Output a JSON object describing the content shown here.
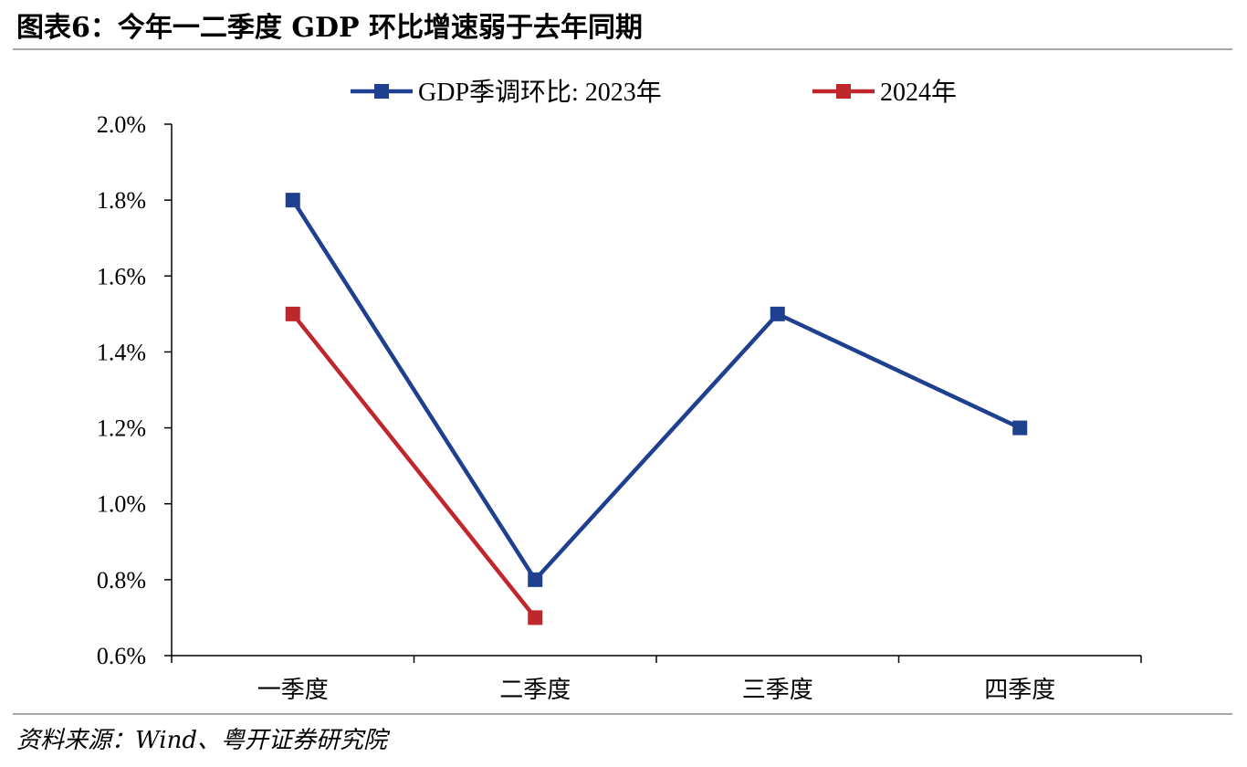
{
  "figure": {
    "title": "图表6：今年一二季度 GDP 环比增速弱于去年同期",
    "source": "资料来源：Wind、粤开证券研究院"
  },
  "chart_data": {
    "type": "line",
    "title": "图表6：今年一二季度 GDP 环比增速弱于去年同期",
    "categories": [
      "一季度",
      "二季度",
      "三季度",
      "四季度"
    ],
    "series": [
      {
        "name": "GDP季调环比: 2023年",
        "values": [
          1.8,
          0.8,
          1.5,
          1.2
        ],
        "color": "#1F3F8F",
        "marker": "square"
      },
      {
        "name": "2024年",
        "values": [
          1.5,
          0.7,
          null,
          null
        ],
        "color": "#C0272D",
        "marker": "square"
      }
    ],
    "y_unit": "%",
    "ylim": [
      0.6,
      2.0
    ],
    "yticks": [
      0.6,
      0.8,
      1.0,
      1.2,
      1.4,
      1.6,
      1.8,
      2.0
    ],
    "ytick_labels": [
      "0.6%",
      "0.8%",
      "1.0%",
      "1.2%",
      "1.4%",
      "1.6%",
      "1.8%",
      "2.0%"
    ],
    "xlabel": "",
    "ylabel": "",
    "grid": false,
    "legend_position": "top-center"
  }
}
